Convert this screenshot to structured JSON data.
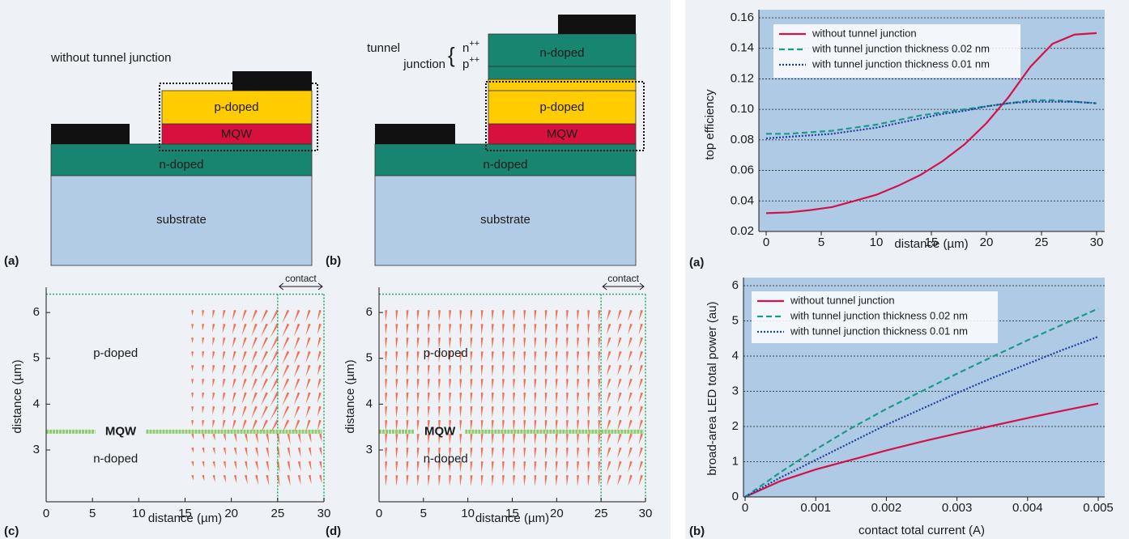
{
  "figure": {
    "device_diagrams": [
      {
        "panel": "(a)",
        "caption": "without tunnel junction",
        "p_layer": "p-doped",
        "mqw": "MQW",
        "n_layer": "n-doped",
        "substrate": "substrate"
      },
      {
        "panel": "(b)",
        "tunnel_label": [
          "tunnel",
          "junction"
        ],
        "n_pp": {
          "base": "n",
          "sup": "++"
        },
        "p_pp": {
          "base": "p",
          "sup": "++"
        },
        "top_n_layer": "n-doped",
        "p_layer": "p-doped",
        "mqw": "MQW",
        "n_layer": "n-doped",
        "substrate": "substrate"
      }
    ],
    "vector_plots": [
      {
        "panel": "(c)",
        "xlabel": "distance (µm)",
        "ylabel": "distance (µm)",
        "xlim": [
          0,
          30
        ],
        "ylim": [
          1.87,
          6.55
        ],
        "xticks": [
          0,
          5,
          10,
          15,
          20,
          25,
          30
        ],
        "yticks": [
          3,
          4,
          5,
          6
        ],
        "regions": [
          "p-doped",
          "MQW",
          "n-doped"
        ],
        "contact": "contact"
      },
      {
        "panel": "(d)",
        "xlabel": "distance (µm)",
        "ylabel": "distance (µm)",
        "xlim": [
          0,
          30
        ],
        "ylim": [
          1.87,
          6.55
        ],
        "xticks": [
          0,
          5,
          10,
          15,
          20,
          25,
          30
        ],
        "yticks": [
          3,
          4,
          5,
          6
        ],
        "regions": [
          "p-doped",
          "MQW",
          "n-doped"
        ],
        "contact": "contact"
      }
    ]
  },
  "chart_data": [
    {
      "type": "line",
      "panel": "(a)",
      "xlabel": "distance (µm)",
      "ylabel": "top efficiency",
      "x": [
        0,
        2,
        4,
        6,
        8,
        10,
        12,
        14,
        16,
        18,
        20,
        22,
        24,
        26,
        28,
        30
      ],
      "xlim": [
        0,
        30
      ],
      "ylim": [
        0.02,
        0.16
      ],
      "xticks": [
        0,
        5,
        10,
        15,
        20,
        25,
        30
      ],
      "yticks": [
        0.02,
        0.04,
        0.06,
        0.08,
        {
          "value": 0.1,
          "label": "0.10"
        },
        0.12,
        0.14,
        0.16
      ],
      "grid": true,
      "legend": "upper left",
      "series": [
        {
          "name": "without tunnel junction",
          "color": "#d4124a",
          "linestyle": "solid",
          "values": [
            0.032,
            0.0325,
            0.034,
            0.036,
            0.04,
            0.044,
            0.05,
            0.057,
            0.066,
            0.077,
            0.091,
            0.108,
            0.128,
            0.143,
            0.149,
            0.15
          ]
        },
        {
          "name": "with tunnel junction thickness 0.02 nm",
          "color": "#1a9a88",
          "linestyle": "dashed",
          "values": [
            0.084,
            0.084,
            0.085,
            0.086,
            0.088,
            0.09,
            0.093,
            0.096,
            0.098,
            0.1,
            0.102,
            0.104,
            0.106,
            0.106,
            0.105,
            0.104
          ]
        },
        {
          "name": "with tunnel junction thickness 0.01 nm",
          "color": "#1c3f9e",
          "linestyle": "dotted",
          "values": [
            0.081,
            0.082,
            0.083,
            0.084,
            0.086,
            0.088,
            0.091,
            0.094,
            0.097,
            0.099,
            0.102,
            0.104,
            0.105,
            0.105,
            0.105,
            0.104
          ]
        }
      ]
    },
    {
      "type": "line",
      "panel": "(b)",
      "xlabel": "contact total current (A)",
      "ylabel": "broad-area LED total power (au)",
      "x": [
        0,
        0.0005,
        0.001,
        0.0015,
        0.002,
        0.0025,
        0.003,
        0.0035,
        0.004,
        0.0045,
        0.005
      ],
      "xlim": [
        0,
        0.005
      ],
      "ylim": [
        0,
        6
      ],
      "xticks": [
        0,
        0.001,
        0.002,
        0.003,
        0.004,
        0.005
      ],
      "yticks": [
        0,
        1,
        2,
        3,
        4,
        5,
        6
      ],
      "grid": true,
      "legend": "upper left",
      "series": [
        {
          "name": "without tunnel junction",
          "color": "#d4124a",
          "linestyle": "solid",
          "values": [
            0,
            0.45,
            0.78,
            1.05,
            1.32,
            1.57,
            1.8,
            2.02,
            2.24,
            2.45,
            2.65
          ]
        },
        {
          "name": "with tunnel junction thickness 0.02 nm",
          "color": "#1a9a88",
          "linestyle": "dashed",
          "values": [
            0,
            0.7,
            1.35,
            1.95,
            2.5,
            3.0,
            3.5,
            3.98,
            4.45,
            4.9,
            5.35
          ]
        },
        {
          "name": "with tunnel junction thickness 0.01 nm",
          "color": "#1c3f9e",
          "linestyle": "dotted",
          "values": [
            0,
            0.55,
            1.05,
            1.55,
            2.05,
            2.5,
            2.95,
            3.38,
            3.78,
            4.18,
            4.55
          ]
        }
      ]
    }
  ]
}
